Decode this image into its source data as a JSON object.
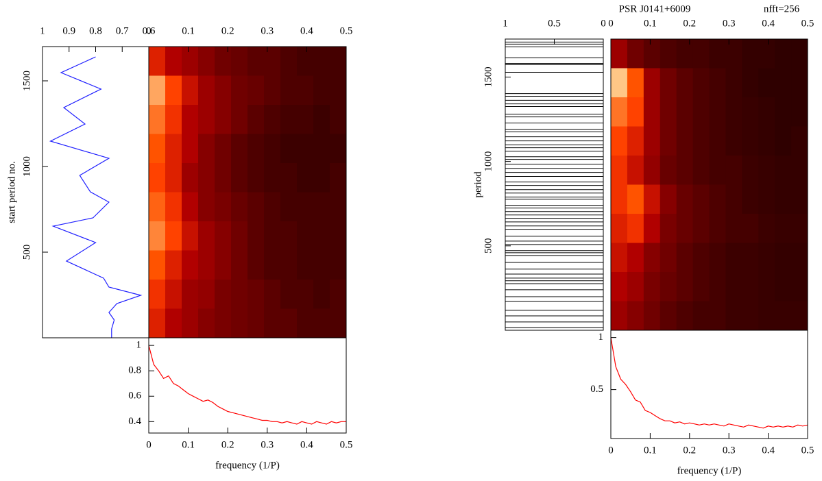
{
  "chart_data": [
    {
      "type": "line",
      "ylabel": "start period no.",
      "color": "#2020ff",
      "values": [
        0.8,
        0.93,
        0.78,
        0.92,
        0.84,
        0.97,
        0.75,
        0.86,
        0.82,
        0.75,
        0.81,
        0.96,
        0.8,
        0.91,
        0.77,
        0.75,
        0.63,
        0.72,
        0.75,
        0.73,
        0.74,
        0.74
      ],
      "periods": [
        1640,
        1548,
        1452,
        1344,
        1248,
        1148,
        1048,
        948,
        852,
        792,
        700,
        652,
        556,
        448,
        348,
        296,
        248,
        200,
        148,
        104,
        52,
        0
      ],
      "xlim": [
        1,
        0.6
      ],
      "xticks": [
        1,
        0.9,
        0.8,
        0.7,
        0.6
      ],
      "ylim": [
        0,
        1700
      ],
      "yticks": [
        500,
        1000,
        1500
      ]
    },
    {
      "type": "heatmap",
      "colormap": "heat",
      "xlim": [
        0,
        0.5
      ],
      "xticks": [
        0,
        0.1,
        0.2,
        0.3,
        0.4,
        0.5
      ],
      "ylim": [
        0,
        1700
      ],
      "z": [
        [
          0.45,
          0.35,
          0.3,
          0.25,
          0.2,
          0.18,
          0.15,
          0.15,
          0.12,
          0.1,
          0.1,
          0.1
        ],
        [
          0.85,
          0.55,
          0.4,
          0.3,
          0.25,
          0.2,
          0.18,
          0.15,
          0.12,
          0.12,
          0.1,
          0.1
        ],
        [
          0.7,
          0.5,
          0.35,
          0.3,
          0.25,
          0.2,
          0.15,
          0.12,
          0.1,
          0.1,
          0.08,
          0.1
        ],
        [
          0.6,
          0.45,
          0.35,
          0.25,
          0.2,
          0.15,
          0.12,
          0.1,
          0.08,
          0.08,
          0.08,
          0.08
        ],
        [
          0.55,
          0.45,
          0.3,
          0.25,
          0.2,
          0.15,
          0.12,
          0.1,
          0.1,
          0.08,
          0.08,
          0.1
        ],
        [
          0.65,
          0.5,
          0.35,
          0.25,
          0.22,
          0.18,
          0.15,
          0.12,
          0.1,
          0.1,
          0.1,
          0.1
        ],
        [
          0.75,
          0.55,
          0.4,
          0.3,
          0.25,
          0.2,
          0.15,
          0.12,
          0.12,
          0.1,
          0.1,
          0.1
        ],
        [
          0.6,
          0.45,
          0.35,
          0.3,
          0.25,
          0.2,
          0.15,
          0.12,
          0.12,
          0.1,
          0.1,
          0.1
        ],
        [
          0.5,
          0.4,
          0.3,
          0.28,
          0.22,
          0.2,
          0.18,
          0.15,
          0.12,
          0.12,
          0.1,
          0.12
        ],
        [
          0.45,
          0.35,
          0.3,
          0.25,
          0.22,
          0.2,
          0.18,
          0.15,
          0.15,
          0.12,
          0.12,
          0.12
        ]
      ]
    },
    {
      "type": "line",
      "xlabel": "frequency (1/P)",
      "color": "#ff0000",
      "x": [
        0,
        0.0125,
        0.025,
        0.0375,
        0.05,
        0.0625,
        0.075,
        0.0875,
        0.1,
        0.1125,
        0.125,
        0.1375,
        0.15,
        0.1625,
        0.175,
        0.1875,
        0.2,
        0.2125,
        0.225,
        0.2375,
        0.25,
        0.2625,
        0.275,
        0.2875,
        0.3,
        0.3125,
        0.325,
        0.3375,
        0.35,
        0.3625,
        0.375,
        0.3875,
        0.4,
        0.4125,
        0.425,
        0.4375,
        0.45,
        0.4625,
        0.475,
        0.4875,
        0.5
      ],
      "values": [
        1.0,
        0.85,
        0.8,
        0.74,
        0.76,
        0.7,
        0.68,
        0.65,
        0.62,
        0.6,
        0.58,
        0.56,
        0.57,
        0.55,
        0.52,
        0.5,
        0.48,
        0.47,
        0.46,
        0.45,
        0.44,
        0.43,
        0.42,
        0.41,
        0.41,
        0.4,
        0.4,
        0.39,
        0.4,
        0.39,
        0.38,
        0.4,
        0.39,
        0.38,
        0.4,
        0.39,
        0.38,
        0.4,
        0.39,
        0.4,
        0.4
      ],
      "xlim": [
        0,
        0.5
      ],
      "xticks": [
        0,
        0.1,
        0.2,
        0.3,
        0.4,
        0.5
      ],
      "ylim": [
        0.31,
        1.06
      ],
      "yticks": [
        0.4,
        0.6,
        0.8,
        1
      ]
    },
    {
      "type": "events",
      "ylabel": "period",
      "color": "#000000",
      "periods": [
        1707,
        1695,
        1679,
        1614,
        1581,
        1573,
        1528,
        1402,
        1386,
        1362,
        1341,
        1325,
        1280,
        1264,
        1228,
        1191,
        1175,
        1146,
        1122,
        1098,
        1081,
        1061,
        1028,
        1012,
        984,
        959,
        935,
        911,
        878,
        858,
        833,
        813,
        789,
        776,
        740,
        724,
        703,
        683,
        663,
        642,
        618,
        598,
        557,
        528,
        508,
        472,
        459,
        443,
        402,
        362,
        333,
        309,
        293,
        276,
        240,
        199,
        171,
        118,
        85,
        49,
        16
      ],
      "xlim": [
        1,
        0
      ],
      "xticks": [
        1,
        0.5,
        0
      ],
      "ylim": [
        0,
        1725
      ],
      "yticks": [
        500,
        1000,
        1500
      ]
    },
    {
      "type": "heatmap",
      "title": "PSR J0141+6009",
      "subtitle": "nfft=256",
      "colormap": "heat",
      "xlim": [
        0,
        0.5
      ],
      "xticks": [
        0,
        0.1,
        0.2,
        0.3,
        0.4,
        0.5
      ],
      "ylim": [
        0,
        1725
      ],
      "z": [
        [
          0.3,
          0.2,
          0.15,
          0.12,
          0.1,
          0.1,
          0.08,
          0.08,
          0.06,
          0.06,
          0.05,
          0.05
        ],
        [
          0.95,
          0.6,
          0.3,
          0.2,
          0.15,
          0.12,
          0.1,
          0.08,
          0.06,
          0.05,
          0.05,
          0.05
        ],
        [
          0.7,
          0.55,
          0.3,
          0.2,
          0.15,
          0.12,
          0.1,
          0.08,
          0.07,
          0.06,
          0.05,
          0.05
        ],
        [
          0.55,
          0.45,
          0.3,
          0.2,
          0.15,
          0.12,
          0.1,
          0.08,
          0.07,
          0.06,
          0.05,
          0.06
        ],
        [
          0.5,
          0.4,
          0.28,
          0.18,
          0.15,
          0.12,
          0.1,
          0.1,
          0.08,
          0.07,
          0.06,
          0.06
        ],
        [
          0.5,
          0.6,
          0.4,
          0.25,
          0.18,
          0.15,
          0.12,
          0.1,
          0.08,
          0.07,
          0.06,
          0.06
        ],
        [
          0.45,
          0.5,
          0.35,
          0.22,
          0.18,
          0.15,
          0.12,
          0.1,
          0.1,
          0.08,
          0.07,
          0.07
        ],
        [
          0.4,
          0.35,
          0.25,
          0.2,
          0.15,
          0.12,
          0.1,
          0.08,
          0.08,
          0.07,
          0.06,
          0.06
        ],
        [
          0.35,
          0.3,
          0.22,
          0.18,
          0.15,
          0.12,
          0.1,
          0.08,
          0.08,
          0.07,
          0.06,
          0.06
        ],
        [
          0.3,
          0.25,
          0.2,
          0.15,
          0.12,
          0.1,
          0.1,
          0.08,
          0.08,
          0.07,
          0.07,
          0.07
        ]
      ]
    },
    {
      "type": "line",
      "xlabel": "frequency (1/P)",
      "color": "#ff0000",
      "x": [
        0,
        0.0125,
        0.025,
        0.0375,
        0.05,
        0.0625,
        0.075,
        0.0875,
        0.1,
        0.1125,
        0.125,
        0.1375,
        0.15,
        0.1625,
        0.175,
        0.1875,
        0.2,
        0.2125,
        0.225,
        0.2375,
        0.25,
        0.2625,
        0.275,
        0.2875,
        0.3,
        0.3125,
        0.325,
        0.3375,
        0.35,
        0.3625,
        0.375,
        0.3875,
        0.4,
        0.4125,
        0.425,
        0.4375,
        0.45,
        0.4625,
        0.475,
        0.4875,
        0.5
      ],
      "values": [
        1.0,
        0.72,
        0.6,
        0.55,
        0.48,
        0.4,
        0.38,
        0.3,
        0.28,
        0.25,
        0.22,
        0.2,
        0.2,
        0.18,
        0.19,
        0.17,
        0.18,
        0.17,
        0.16,
        0.17,
        0.16,
        0.17,
        0.16,
        0.15,
        0.17,
        0.16,
        0.15,
        0.14,
        0.16,
        0.15,
        0.14,
        0.13,
        0.15,
        0.14,
        0.15,
        0.14,
        0.15,
        0.14,
        0.16,
        0.15,
        0.16
      ],
      "xlim": [
        0,
        0.5
      ],
      "xticks": [
        0,
        0.1,
        0.2,
        0.3,
        0.4,
        0.5
      ],
      "ylim": [
        0.03,
        1.07
      ],
      "yticks": [
        0.5,
        1
      ]
    }
  ]
}
